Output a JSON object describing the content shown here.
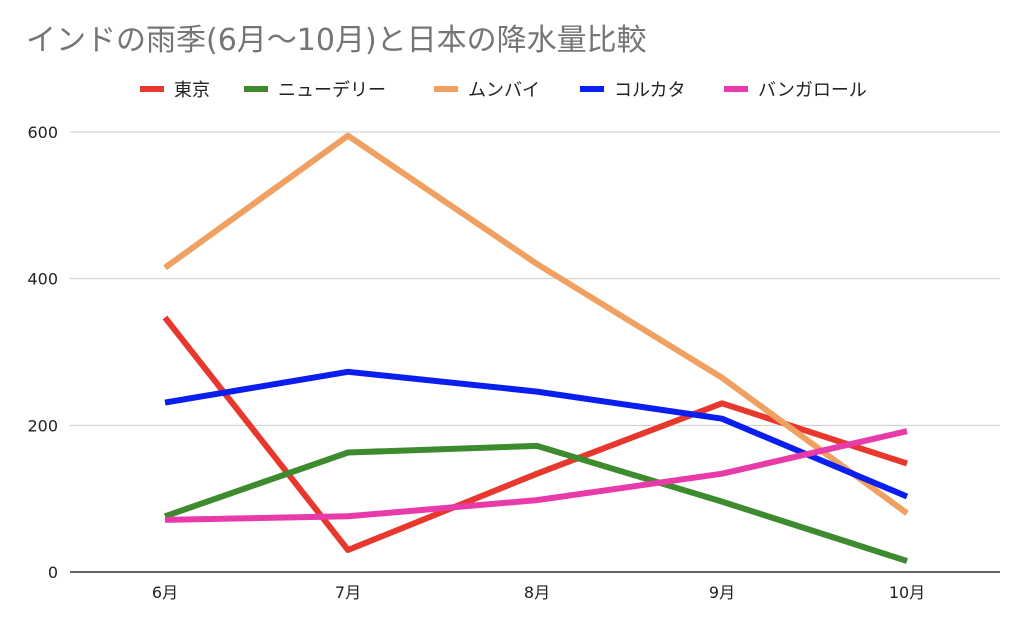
{
  "chart_data": {
    "type": "line",
    "title": "インドの雨季(6月〜10月)と日本の降水量比較",
    "xlabel": "",
    "ylabel": "",
    "categories": [
      "6月",
      "7月",
      "8月",
      "9月",
      "10月"
    ],
    "ylim": [
      0,
      600
    ],
    "yticks": [
      0,
      200,
      400,
      600
    ],
    "grid": true,
    "legend_position": "top",
    "series": [
      {
        "name": "東京",
        "color": "#e8372d",
        "values": [
          347,
          30,
          134,
          230,
          148
        ]
      },
      {
        "name": "ニューデリー",
        "color": "#3d8b2e",
        "values": [
          76,
          163,
          172,
          96,
          15
        ]
      },
      {
        "name": "ムンバイ",
        "color": "#f0a060",
        "values": [
          415,
          595,
          420,
          265,
          80
        ]
      },
      {
        "name": "コルカタ",
        "color": "#0a1ef0",
        "values": [
          231,
          273,
          246,
          209,
          103
        ]
      },
      {
        "name": "バンガロール",
        "color": "#e83aa8",
        "values": [
          71,
          76,
          98,
          134,
          192
        ]
      }
    ]
  }
}
